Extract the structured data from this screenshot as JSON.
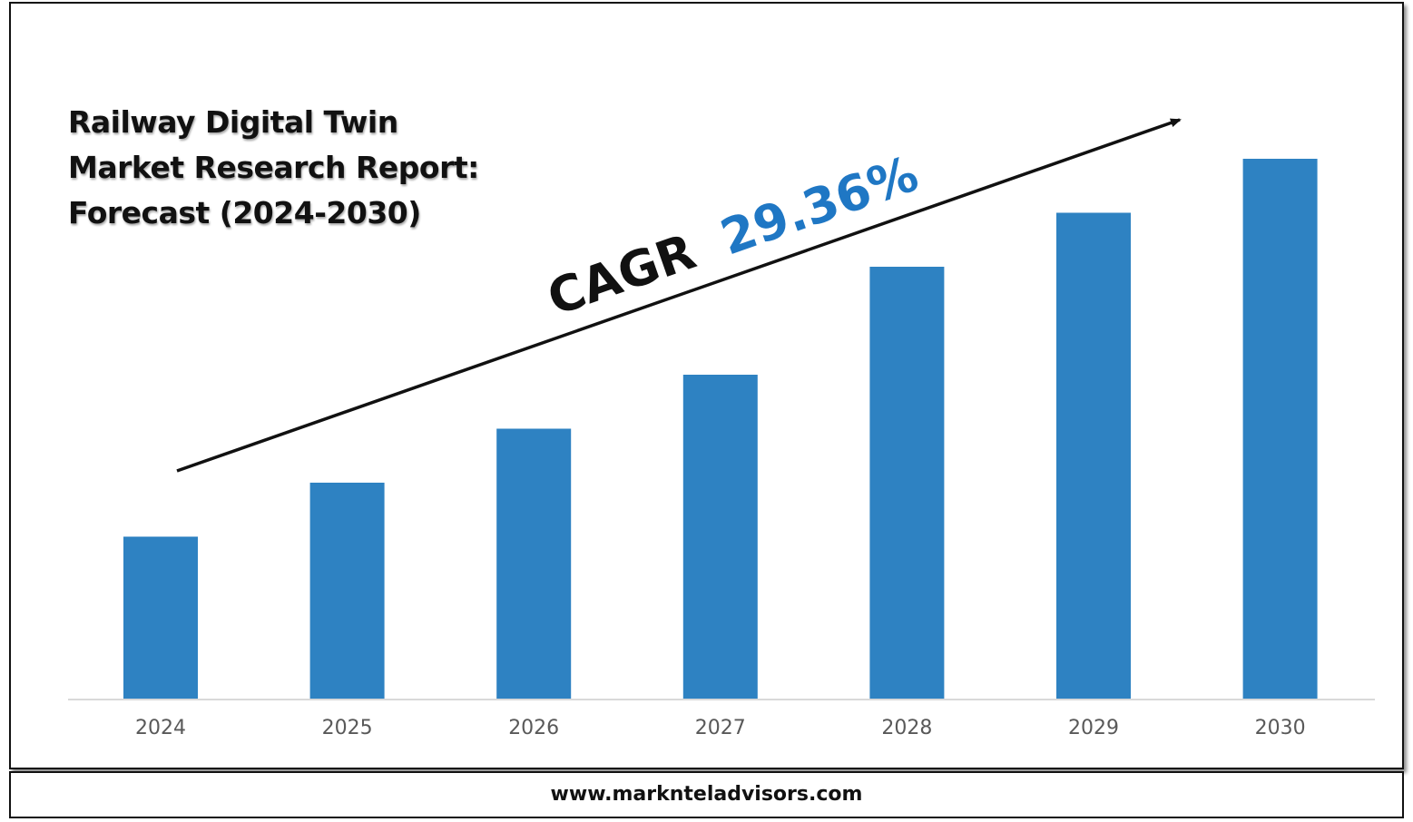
{
  "header": {
    "title_lines": [
      "Railway Digital Twin",
      "Market Research Report:",
      "Forecast (2024-2030)"
    ]
  },
  "annotation": {
    "cagr_label": "CAGR",
    "cagr_value": "29.36%"
  },
  "footer": {
    "url": "www.marknteladvisors.com"
  },
  "colors": {
    "bar": "#2e82c2",
    "cagr_value": "#1f77c4",
    "text": "#111111",
    "axis": "#d9d9d9",
    "tick_label": "#595959"
  },
  "chart_data": {
    "type": "bar",
    "title": "Railway Digital Twin Market Research Report: Forecast (2024-2030)",
    "categories": [
      "2024",
      "2025",
      "2026",
      "2027",
      "2028",
      "2029",
      "2030"
    ],
    "values": [
      30,
      40,
      50,
      60,
      80,
      90,
      100
    ],
    "ylim": [
      0,
      100
    ],
    "grid": false,
    "legend": "none",
    "annotations": [
      "CAGR 29.36%"
    ]
  }
}
